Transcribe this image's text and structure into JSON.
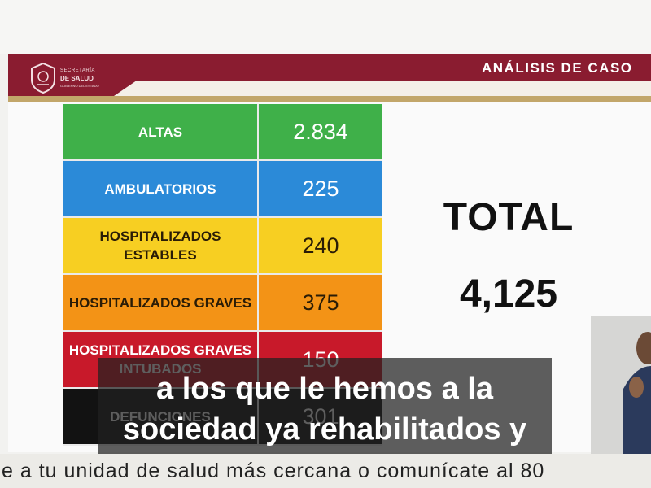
{
  "header": {
    "logo": {
      "line1": "SECRETARÍA",
      "line2": "DE SALUD",
      "line3": "GOBIERNO DEL ESTADO"
    },
    "title": "ANÁLISIS DE CASO"
  },
  "table": {
    "rows": [
      {
        "label": "ALTAS",
        "value": "2.834",
        "color": "#3fb049"
      },
      {
        "label": "AMBULATORIOS",
        "value": "225",
        "color": "#2b8ad8"
      },
      {
        "label": "HOSPITALIZADOS ESTABLES",
        "value": "240",
        "color": "#f7cf22"
      },
      {
        "label": "HOSPITALIZADOS GRAVES",
        "value": "375",
        "color": "#f39316"
      },
      {
        "label": "HOSPITALIZADOS GRAVES INTUBADOS",
        "value": "150",
        "color": "#c8192a"
      },
      {
        "label": "DEFUNCIONES",
        "value": "301",
        "color": "#121212"
      }
    ]
  },
  "total": {
    "label": "TOTAL",
    "value": "4,125"
  },
  "caption": {
    "line1": "a los que le hemos a la",
    "line2": "sociedad ya rehabilitados y"
  },
  "ticker": {
    "text": "e a tu unidad de salud más cercana o comunícate al 80"
  }
}
